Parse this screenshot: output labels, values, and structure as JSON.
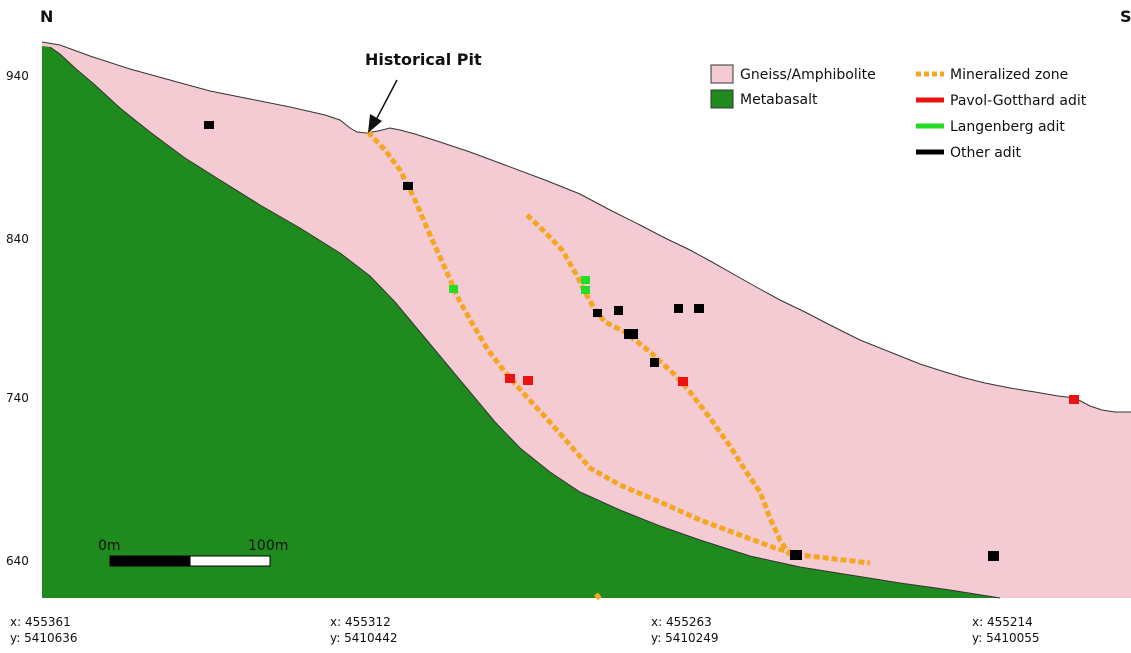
{
  "directions": {
    "left": "N",
    "right": "S"
  },
  "elevation_ticks": [
    "940",
    "840",
    "740",
    "640"
  ],
  "coordinates": [
    {
      "x": "x: 455361",
      "y": "y: 5410636"
    },
    {
      "x": "x: 455312",
      "y": "y: 5410442"
    },
    {
      "x": "x: 455263",
      "y": "y: 5410249"
    },
    {
      "x": "x: 455214",
      "y": "y: 5410055"
    }
  ],
  "annotation": {
    "label": "Historical Pit"
  },
  "scale_bar": {
    "start_label": "0m",
    "end_label": "100m"
  },
  "legend": {
    "units": [
      {
        "label": "Gneiss/Amphibolite",
        "color": "#f4cbd3"
      },
      {
        "label": "Metabasalt",
        "color": "#1f8b1f"
      }
    ],
    "lines": [
      {
        "label": "Mineralized zone",
        "color": "#f5a623",
        "style": "dashed"
      },
      {
        "label": "Pavol-Gotthard adit",
        "color": "#ee1111",
        "style": "solid"
      },
      {
        "label": "Langenberg adit",
        "color": "#22dd22",
        "style": "solid"
      },
      {
        "label": "Other adit",
        "color": "#000000",
        "style": "solid"
      }
    ]
  },
  "colors": {
    "gneiss": "#f4cbd3",
    "metabasalt": "#1f8b1f",
    "mineralized": "#f5a623",
    "pavol": "#ee1111",
    "langenberg": "#22dd22",
    "other": "#000000"
  }
}
